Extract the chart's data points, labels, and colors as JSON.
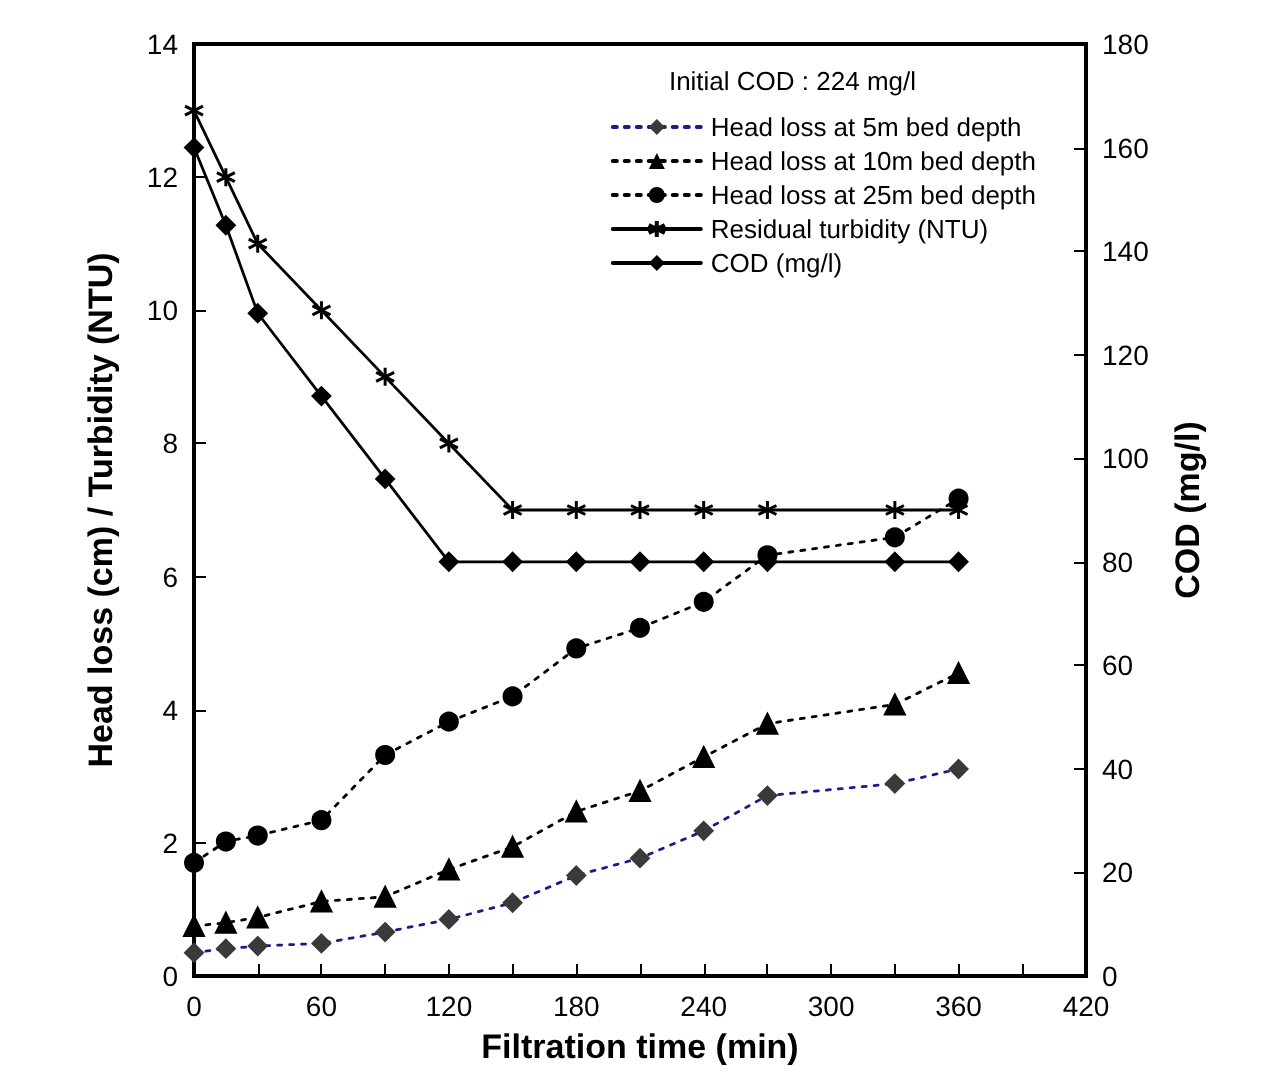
{
  "chart_data": {
    "type": "line",
    "xlabel": "Filtration time (min)",
    "ylabel": "Head loss (cm) / Turbidity (NTU)",
    "y2label": "COD (mg/l)",
    "legend_title": "Initial COD : 224 mg/l",
    "legend": "top right",
    "grid": false,
    "x": [
      0,
      15,
      30,
      60,
      90,
      120,
      150,
      180,
      210,
      240,
      270,
      330,
      360
    ],
    "xlim": [
      0,
      420
    ],
    "xticks": [
      0,
      {
        "value": 30,
        "label": null
      },
      60,
      {
        "value": 90,
        "label": null
      },
      120,
      {
        "value": 150,
        "label": null
      },
      180,
      {
        "value": 210,
        "label": null
      },
      240,
      {
        "value": 270,
        "label": null
      },
      300,
      {
        "value": 330,
        "label": null
      },
      360,
      {
        "value": 390,
        "label": null
      },
      420
    ],
    "ylim": [
      0,
      14
    ],
    "yticks": [
      0,
      2,
      4,
      6,
      8,
      10,
      12,
      14
    ],
    "y2lim": [
      0,
      180
    ],
    "y2ticks": [
      0,
      20,
      40,
      60,
      80,
      100,
      120,
      140,
      160,
      180
    ],
    "series": [
      {
        "name": "Head loss at 5m bed depth",
        "color": "#1a1a8c",
        "marker": "diamond",
        "line_style": "dotted",
        "values": [
          0.35,
          0.41,
          0.45,
          0.49,
          0.66,
          0.85,
          1.1,
          1.51,
          1.77,
          2.18,
          2.71,
          2.89,
          3.11
        ]
      },
      {
        "name": "Head loss at 10m bed depth",
        "color": "#000000",
        "marker": "triangle",
        "line_style": "dotted",
        "values": [
          0.75,
          0.8,
          0.88,
          1.12,
          1.19,
          1.6,
          1.94,
          2.47,
          2.78,
          3.29,
          3.79,
          4.08,
          4.55
        ]
      },
      {
        "name": "Head loss at 25m bed depth",
        "color": "#000000",
        "marker": "circle",
        "line_style": "dotted",
        "values": [
          1.7,
          2.02,
          2.11,
          2.34,
          3.32,
          3.82,
          4.2,
          4.92,
          5.23,
          5.62,
          6.32,
          6.59,
          7.17
        ]
      },
      {
        "name": "Residual turbidity (NTU)",
        "color": "#000000",
        "marker": "cross",
        "line_style": "solid",
        "values": [
          13,
          12,
          11,
          10,
          9,
          8,
          7,
          7,
          7,
          7,
          7,
          7,
          7
        ]
      },
      {
        "name": "COD (mg/l)",
        "color": "#000000",
        "marker": "diamond",
        "line_style": "solid",
        "axis": "y2",
        "values": [
          160,
          145,
          128,
          112,
          96,
          80,
          80,
          80,
          80,
          80,
          80,
          80,
          80
        ]
      }
    ]
  }
}
